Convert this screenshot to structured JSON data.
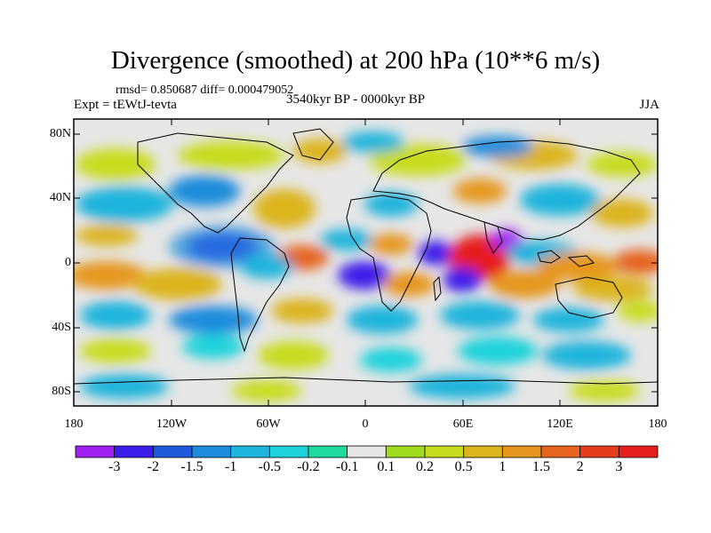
{
  "map": {
    "title": "Divergence (smoothed) at 200 hPa (10**6 m/s)",
    "stats": "rmsd= 0.850687 diff= 0.000479052",
    "experiment": "Expt = tEWtJ-tevta",
    "period": "3540kyr BP - 0000kyr BP",
    "season": "JJA",
    "lat_ticks": [
      "80N",
      "40N",
      "0",
      "40S",
      "80S"
    ],
    "lon_ticks": [
      "180",
      "120W",
      "60W",
      "0",
      "60E",
      "120E",
      "180"
    ]
  },
  "colorbar": {
    "labels": [
      "-3",
      "-2",
      "-1.5",
      "-1",
      "-0.5",
      "-0.2",
      "-0.1",
      "0.1",
      "0.2",
      "0.5",
      "1",
      "1.5",
      "2",
      "3"
    ],
    "colors": [
      "#a020f0",
      "#3c1eeb",
      "#1e5adc",
      "#1e8cdc",
      "#1eb4dc",
      "#1ed2dc",
      "#1edca0",
      "#e6e6e6",
      "#a0dc1e",
      "#c8dc1e",
      "#dcb41e",
      "#e6961e",
      "#e6641e",
      "#e63c1e",
      "#e61e1e"
    ]
  },
  "colors": {
    "background": "#e6e6e6",
    "frame": "#000000",
    "coastline": "#000000"
  }
}
